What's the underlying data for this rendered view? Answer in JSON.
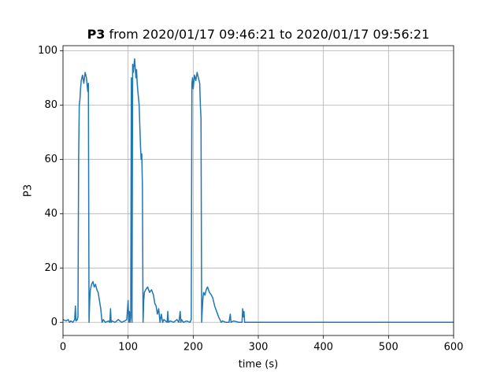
{
  "chart_data": {
    "type": "line",
    "title": [
      "P3",
      "from 2020/01/17 09:46:21 to 2020/01/17 09:56:21"
    ],
    "xlabel": "time (s)",
    "ylabel": "P3",
    "x": [
      0,
      5,
      8,
      10,
      12,
      15,
      18,
      19,
      20,
      22,
      23,
      24,
      25,
      26,
      27,
      28,
      30,
      32,
      34,
      36,
      38,
      39,
      40,
      41,
      42,
      44,
      46,
      48,
      50,
      52,
      54,
      56,
      58,
      60,
      62,
      65,
      70,
      72,
      73,
      74,
      75,
      80,
      85,
      90,
      95,
      98,
      100,
      101,
      102,
      103,
      104,
      105,
      106,
      107,
      108,
      110,
      112,
      113,
      114,
      115,
      117,
      119,
      120,
      121,
      122,
      123,
      124,
      125,
      127,
      130,
      133,
      136,
      139,
      141,
      143,
      145,
      147,
      149,
      151,
      153,
      155,
      160,
      161,
      162,
      165,
      170,
      175,
      178,
      180,
      181,
      182,
      185,
      190,
      195,
      197,
      198,
      199,
      200,
      202,
      204,
      206,
      208,
      210,
      211,
      212,
      213,
      214,
      215,
      216,
      218,
      220,
      222,
      225,
      228,
      230,
      233,
      236,
      239,
      241,
      243,
      245,
      250,
      255,
      257,
      258,
      262,
      270,
      275,
      276,
      277,
      278,
      279,
      280,
      300,
      400,
      500,
      600
    ],
    "series": [
      {
        "name": "P3",
        "color": "#1f77b4",
        "values": [
          1,
          0.5,
          1,
          0,
          0.5,
          0,
          1,
          6,
          0.5,
          1,
          2,
          60,
          80,
          82,
          86,
          89,
          91,
          88,
          92,
          90,
          85,
          88,
          0,
          8,
          12,
          14,
          15,
          13,
          14,
          12,
          11,
          8,
          5,
          0,
          1,
          0,
          0.5,
          0,
          5,
          0,
          0.5,
          0,
          1,
          0,
          0.5,
          1,
          8,
          0,
          4,
          0,
          2,
          90,
          0,
          95,
          92,
          97,
          90,
          93,
          88,
          85,
          80,
          65,
          60,
          62,
          50,
          0,
          8,
          11,
          12,
          13,
          11,
          12,
          10,
          7,
          6,
          3,
          5,
          0,
          3,
          0,
          1,
          0,
          4,
          0,
          0.5,
          0,
          1,
          0,
          4,
          0,
          1,
          0,
          0.5,
          0,
          1,
          88,
          90,
          86,
          91,
          89,
          92,
          90,
          88,
          80,
          75,
          0,
          5,
          9,
          11,
          10,
          12,
          13,
          11,
          10,
          9,
          6,
          4,
          2,
          1,
          0,
          0.5,
          0,
          0,
          3,
          0,
          0.5,
          0,
          0,
          5,
          2,
          4,
          0,
          0,
          0,
          0,
          0,
          0
        ]
      }
    ],
    "xlim": [
      0,
      600
    ],
    "xticks": [
      0,
      100,
      200,
      300,
      400,
      500,
      600
    ],
    "ylim": [
      -4.85,
      101.85
    ],
    "yticks": [
      0,
      20,
      40,
      60,
      80,
      100
    ],
    "grid": true
  }
}
